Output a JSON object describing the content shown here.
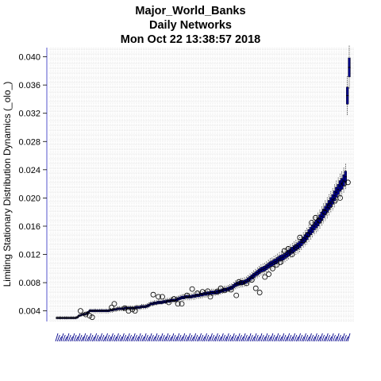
{
  "chart_data": {
    "type": "boxplot",
    "title": "Major_World_Banks",
    "subtitle": "Daily Networks",
    "timestamp": "Mon Oct 22 13:38:57 2018",
    "xlabel": "",
    "ylabel": "Limiting Stationary Distribution Dynamics (_olo_)",
    "ylim": [
      0.0025,
      0.0413
    ],
    "y_ticks": [
      "0.004",
      "0.008",
      "0.012",
      "0.016",
      "0.020",
      "0.024",
      "0.028",
      "0.032",
      "0.036",
      "0.040"
    ],
    "y_tick_values": [
      0.004,
      0.008,
      0.012,
      0.016,
      0.02,
      0.024,
      0.028,
      0.032,
      0.036,
      0.04
    ],
    "grid": true,
    "n_categories": 160,
    "box_color": "#00008b",
    "grid_color": "#d3d3d3",
    "outlier_color": "#000000",
    "medians": [
      0.003,
      0.003,
      0.003,
      0.003,
      0.003,
      0.003,
      0.003,
      0.003,
      0.003,
      0.003,
      0.003,
      0.0031,
      0.0033,
      0.0034,
      0.0035,
      0.0035,
      0.0036,
      0.0038,
      0.004,
      0.004,
      0.004,
      0.004,
      0.004,
      0.004,
      0.004,
      0.004,
      0.004,
      0.004,
      0.004,
      0.0041,
      0.0041,
      0.0042,
      0.0042,
      0.0043,
      0.0043,
      0.0043,
      0.0043,
      0.0044,
      0.0044,
      0.0044,
      0.0044,
      0.0044,
      0.0044,
      0.0045,
      0.0045,
      0.0045,
      0.0046,
      0.0046,
      0.0046,
      0.0047,
      0.0048,
      0.005,
      0.005,
      0.0051,
      0.0051,
      0.0052,
      0.0052,
      0.0052,
      0.0053,
      0.0053,
      0.0054,
      0.0054,
      0.0055,
      0.0055,
      0.0055,
      0.0056,
      0.0057,
      0.0058,
      0.0059,
      0.0059,
      0.006,
      0.006,
      0.006,
      0.006,
      0.0061,
      0.0061,
      0.0062,
      0.0062,
      0.0063,
      0.0063,
      0.0064,
      0.0064,
      0.0065,
      0.0065,
      0.0066,
      0.0066,
      0.0066,
      0.0067,
      0.0067,
      0.0068,
      0.0069,
      0.007,
      0.007,
      0.0071,
      0.0072,
      0.0073,
      0.0075,
      0.0077,
      0.0078,
      0.0079,
      0.008,
      0.008,
      0.0081,
      0.0082,
      0.0084,
      0.0086,
      0.0088,
      0.009,
      0.0092,
      0.0094,
      0.0096,
      0.0098,
      0.0099,
      0.01,
      0.0102,
      0.0104,
      0.0106,
      0.0107,
      0.0109,
      0.011,
      0.0112,
      0.0114,
      0.0115,
      0.0116,
      0.0118,
      0.012,
      0.0122,
      0.0124,
      0.0126,
      0.0128,
      0.013,
      0.0132,
      0.0134,
      0.0137,
      0.014,
      0.0143,
      0.0146,
      0.015,
      0.0153,
      0.0156,
      0.016,
      0.0163,
      0.0166,
      0.017,
      0.0174,
      0.0178,
      0.0182,
      0.0186,
      0.019,
      0.0194,
      0.0198,
      0.0203,
      0.0208,
      0.0212,
      0.0217,
      0.022,
      0.0225,
      0.023,
      0.0345,
      0.0385
    ],
    "outliers": [
      [
        18,
        0.004
      ],
      [
        22,
        0.0035
      ],
      [
        25,
        0.0033
      ],
      [
        27,
        0.0031
      ],
      [
        42,
        0.0045
      ],
      [
        44,
        0.005
      ],
      [
        52,
        0.0044
      ],
      [
        55,
        0.004
      ],
      [
        58,
        0.0042
      ],
      [
        60,
        0.004
      ],
      [
        74,
        0.0063
      ],
      [
        78,
        0.006
      ],
      [
        81,
        0.006
      ],
      [
        86,
        0.0052
      ],
      [
        90,
        0.0057
      ],
      [
        93,
        0.005
      ],
      [
        96,
        0.005
      ],
      [
        100,
        0.0062
      ],
      [
        104,
        0.0071
      ],
      [
        108,
        0.0065
      ],
      [
        112,
        0.0067
      ],
      [
        116,
        0.0068
      ],
      [
        118,
        0.006
      ],
      [
        123,
        0.0067
      ],
      [
        126,
        0.0072
      ],
      [
        129,
        0.0069
      ],
      [
        134,
        0.007
      ],
      [
        138,
        0.0062
      ],
      [
        140,
        0.0081
      ],
      [
        142,
        0.008
      ],
      [
        146,
        0.0079
      ],
      [
        150,
        0.0084
      ],
      [
        153,
        0.0072
      ],
      [
        156,
        0.0066
      ],
      [
        160,
        0.0088
      ],
      [
        163,
        0.0092
      ],
      [
        166,
        0.01
      ],
      [
        169,
        0.0105
      ],
      [
        172,
        0.0109
      ],
      [
        175,
        0.0125
      ],
      [
        178,
        0.0128
      ],
      [
        181,
        0.012
      ],
      [
        184,
        0.013
      ],
      [
        187,
        0.0144
      ],
      [
        190,
        0.014
      ],
      [
        193,
        0.0148
      ],
      [
        196,
        0.0165
      ],
      [
        199,
        0.0172
      ],
      [
        202,
        0.0168
      ],
      [
        206,
        0.018
      ],
      [
        210,
        0.0189
      ],
      [
        214,
        0.0196
      ],
      [
        218,
        0.02
      ],
      [
        221,
        0.022
      ],
      [
        224,
        0.0222
      ]
    ],
    "note_outliers_index_space": "outlier x indices are on a 0-225 scale mapped across the same category range"
  }
}
